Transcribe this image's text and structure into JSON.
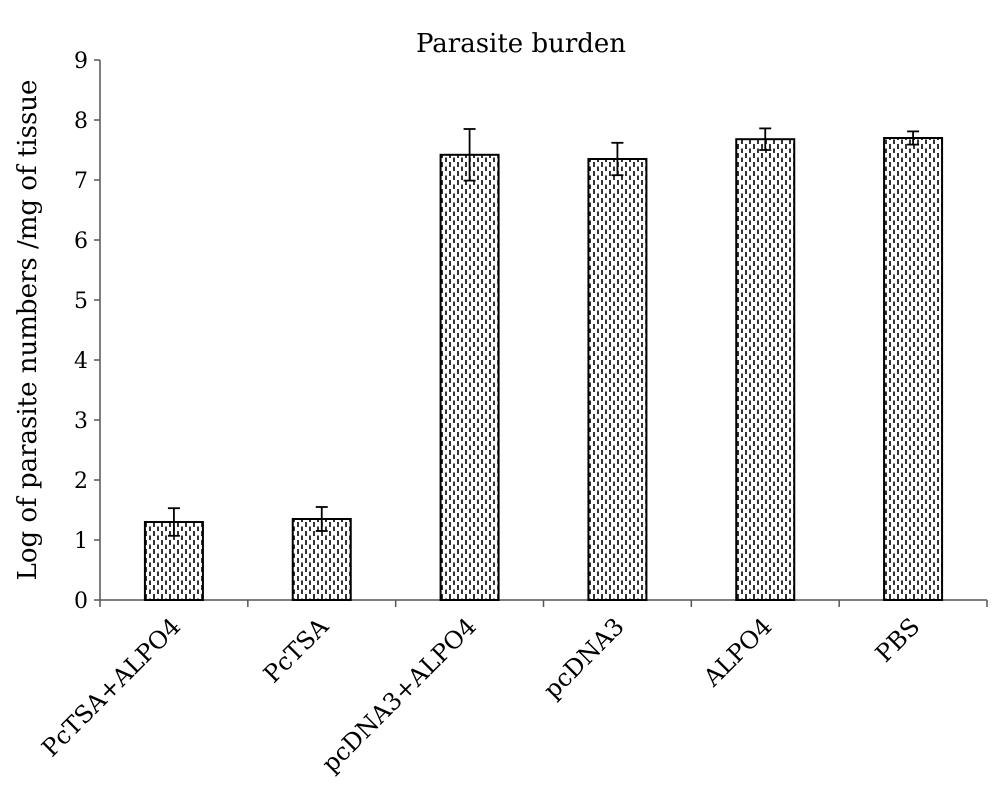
{
  "chart_data": {
    "type": "bar",
    "title": "Parasite burden",
    "xlabel": "",
    "ylabel": "Log of parasite numbers /mg of tissue",
    "ylim": [
      0,
      9
    ],
    "yticks": [
      0,
      1,
      2,
      3,
      4,
      5,
      6,
      7,
      8,
      9
    ],
    "grid": false,
    "legend": "none",
    "categories": [
      "PcTSA+ALPO4",
      "PcTSA",
      "pcDNA3+ALPO4",
      "pcDNA3",
      "ALPO4",
      "PBS"
    ],
    "values": [
      1.3,
      1.35,
      7.42,
      7.35,
      7.68,
      7.7
    ],
    "error": [
      0.23,
      0.2,
      0.43,
      0.27,
      0.18,
      0.11
    ],
    "bar_fill": "#ffffff",
    "bar_pattern": "dashed vertical stipple",
    "bar_stroke": "#000000"
  }
}
